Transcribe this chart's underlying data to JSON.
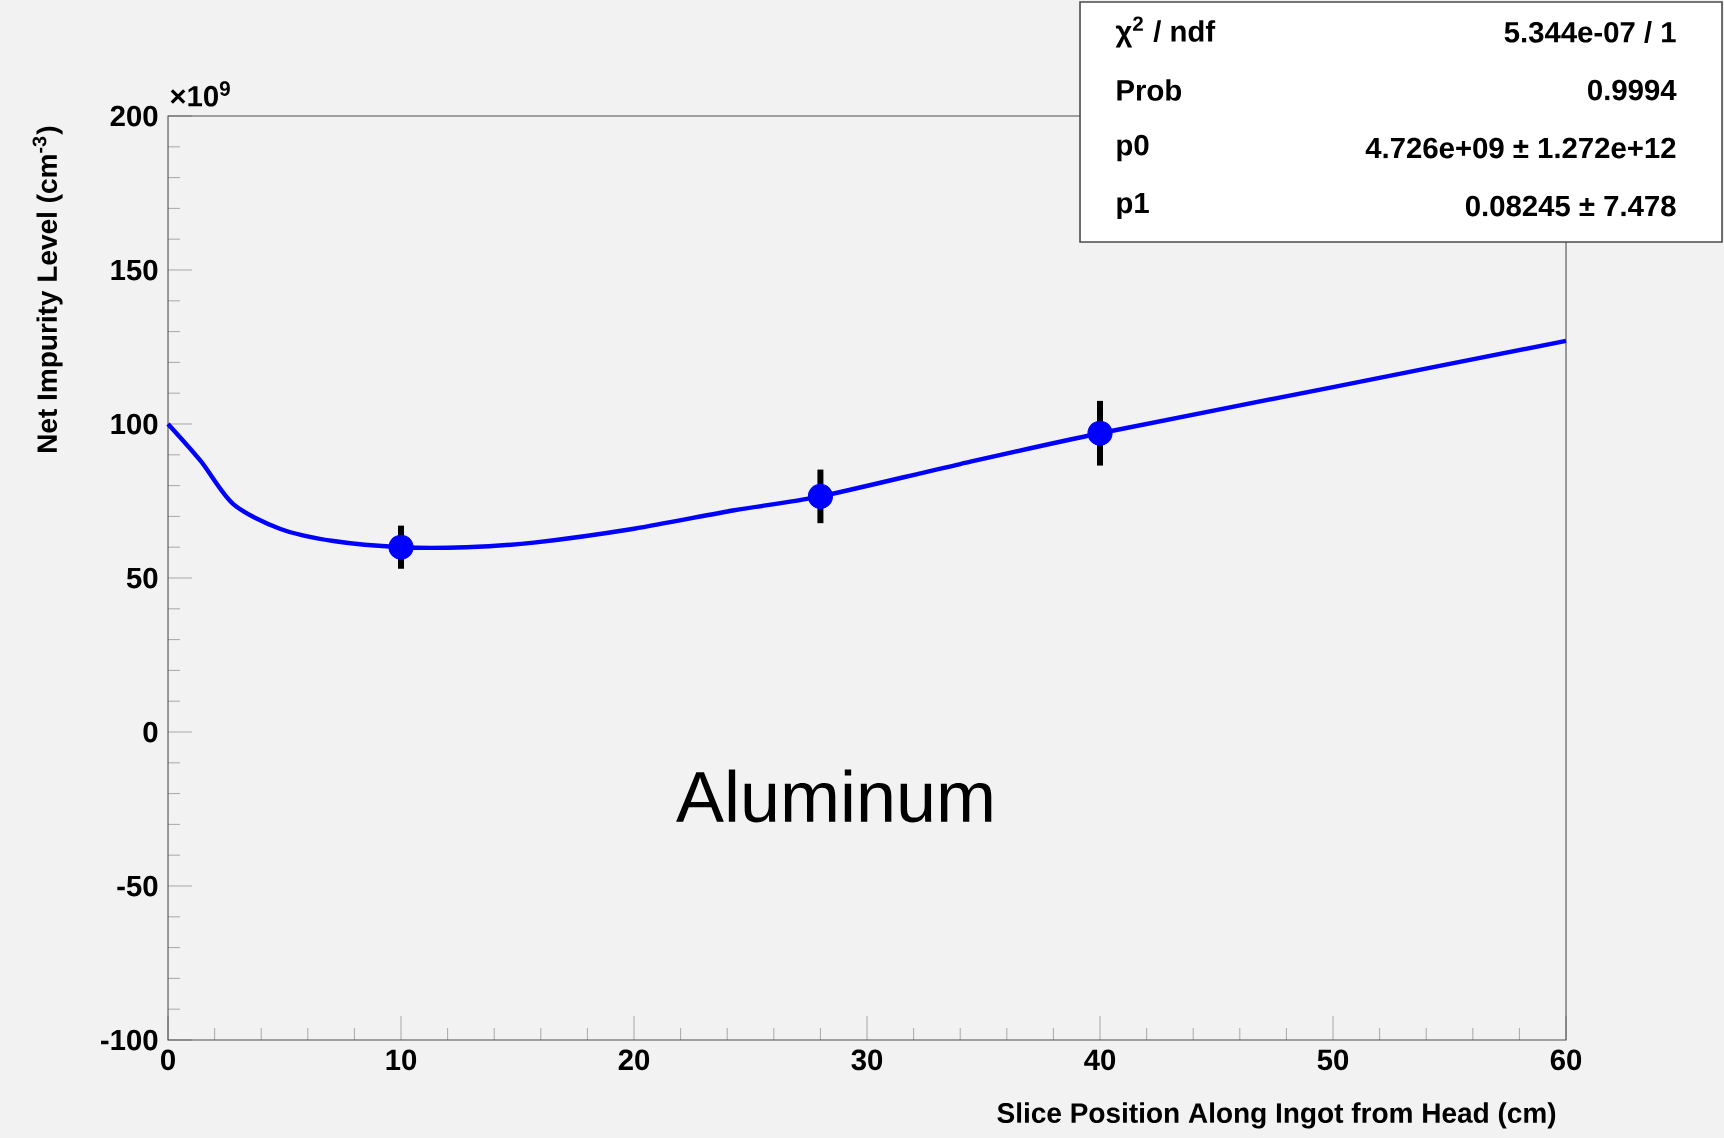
{
  "chart_data": {
    "type": "scatter",
    "xlabel": "Slice Position Along Ingot from Head (cm)",
    "ylabel": "Net Impurity Level (cm$^{-3}$)",
    "xlim": [
      0,
      60
    ],
    "ylim": [
      -100,
      200
    ],
    "xticks": [
      0,
      10,
      20,
      30,
      40,
      50,
      60
    ],
    "yticks": [
      -100,
      -50,
      0,
      50,
      100,
      150,
      200
    ],
    "grid": false,
    "series": [
      {
        "color": "#0000ff",
        "marker": "circle",
        "x": [
          10,
          28,
          40
        ],
        "values": [
          60,
          76.5,
          97
        ],
        "errors": [
          7,
          8.7,
          10.5
        ]
      },
      {
        "type": "line",
        "marker": "none",
        "color": "#0000ff",
        "x": [
          0,
          1.4,
          2.8,
          4.8,
          7.1,
          10,
          12.8,
          15.7,
          20,
          24.3,
          28,
          34,
          40,
          50,
          60
        ],
        "values": [
          100,
          88,
          74,
          66,
          62,
          60,
          60,
          61.5,
          66,
          72,
          76.5,
          87,
          97,
          112,
          127
        ]
      }
    ],
    "annotations": [
      "×10$^{9}$",
      "χ$^{2}$ / ndf",
      "5.344e-07 / 1",
      "Prob",
      "0.9994",
      "p0",
      "4.726e+09 ± 1.272e+12",
      "p1",
      "0.08245 ± 7.478",
      "Aluminum"
    ]
  }
}
